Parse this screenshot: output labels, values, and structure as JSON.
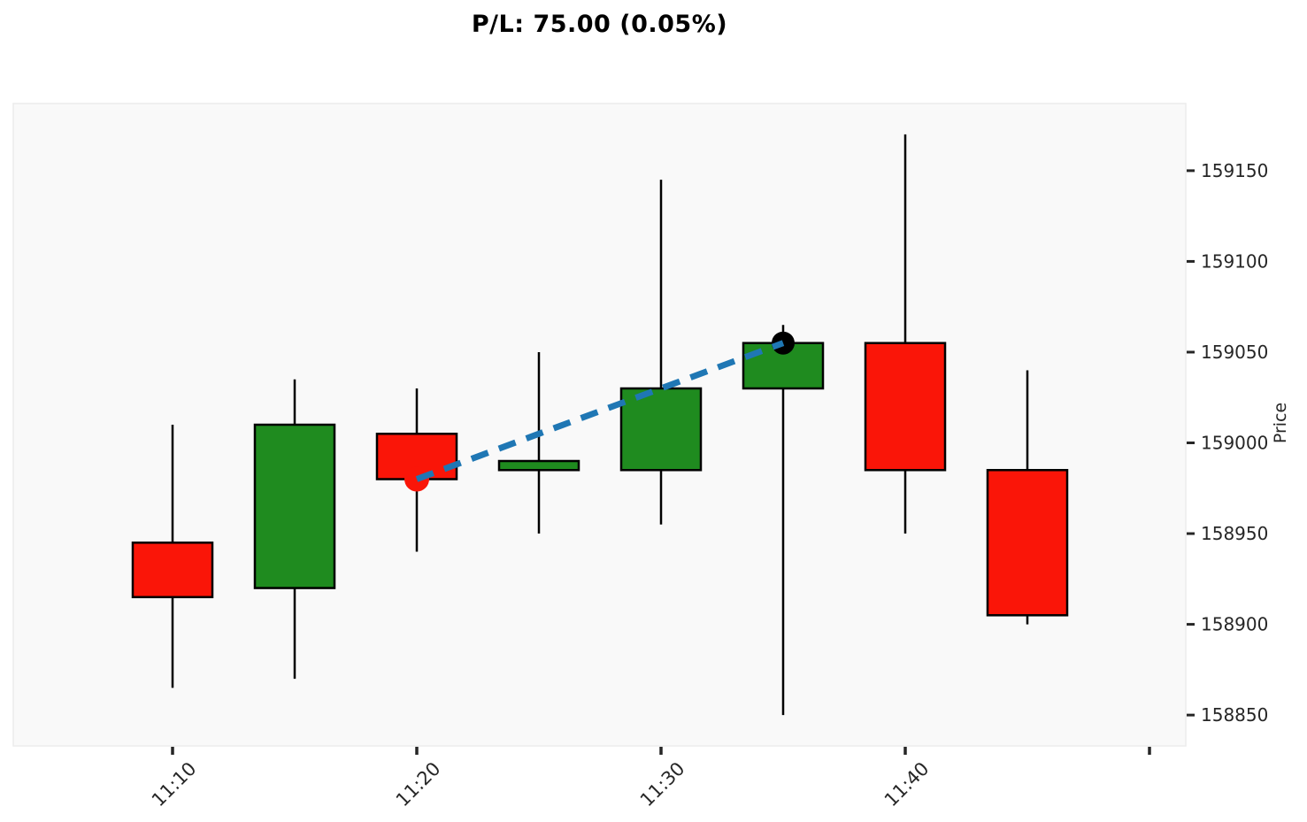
{
  "title": "P/L: 75.00 (0.05%)",
  "chart_data": {
    "type": "candlestick",
    "title": "P/L: 75.00 (0.05%)",
    "xlabel": "",
    "ylabel": "Price",
    "x": [
      "11:10",
      "11:15",
      "11:20",
      "11:25",
      "11:30",
      "11:35",
      "11:40",
      "11:45"
    ],
    "x_tick_labels": [
      "11:10",
      "11:20",
      "11:30",
      "11:40"
    ],
    "y_ticks": [
      158850,
      158900,
      158950,
      159000,
      159050,
      159100,
      159150
    ],
    "ylim": [
      158833,
      159187
    ],
    "grid": false,
    "legend": "none",
    "candles": [
      {
        "time": "11:10",
        "open": 158945,
        "high": 159010,
        "low": 158865,
        "close": 158915,
        "direction": "down"
      },
      {
        "time": "11:15",
        "open": 158920,
        "high": 159035,
        "low": 158870,
        "close": 159010,
        "direction": "up"
      },
      {
        "time": "11:20",
        "open": 159005,
        "high": 159030,
        "low": 158940,
        "close": 158980,
        "direction": "down"
      },
      {
        "time": "11:25",
        "open": 158985,
        "high": 159050,
        "low": 158950,
        "close": 158990,
        "direction": "up"
      },
      {
        "time": "11:30",
        "open": 158985,
        "high": 159145,
        "low": 158955,
        "close": 159030,
        "direction": "up"
      },
      {
        "time": "11:35",
        "open": 159030,
        "high": 159065,
        "low": 158850,
        "close": 159055,
        "direction": "up"
      },
      {
        "time": "11:40",
        "open": 159055,
        "high": 159170,
        "low": 158950,
        "close": 158985,
        "direction": "down"
      },
      {
        "time": "11:45",
        "open": 158985,
        "high": 159040,
        "low": 158900,
        "close": 158905,
        "direction": "down"
      }
    ],
    "trade": {
      "entry": {
        "time": "11:20",
        "price": 158980,
        "marker": "red-dot"
      },
      "exit": {
        "time": "11:35",
        "price": 159055,
        "marker": "black-dot"
      },
      "pl": "75.00",
      "pl_pct": "0.05%",
      "line_style": "dashed"
    },
    "colors": {
      "up": "#1f8b1f",
      "down": "#fa1508",
      "candle_border": "#000000",
      "wick": "#000000",
      "trade_line": "#1f77b4",
      "entry_dot": "#fa1508",
      "exit_dot": "#000000",
      "plot_bg": "#f9f9f9",
      "plot_border": "#ececec",
      "fig_bg": "#ffffff",
      "tick": "#262626",
      "tick_label": "#262626",
      "title": "#000000"
    }
  }
}
